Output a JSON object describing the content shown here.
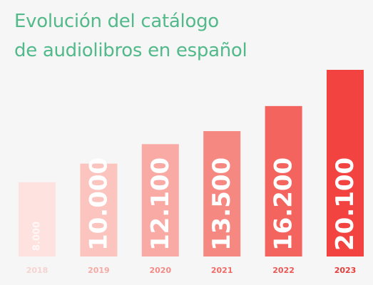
{
  "title_line1": "Evolución del catálogo",
  "title_line2": "de audiolibros en español",
  "chart_data": {
    "type": "bar",
    "title": "Evolución del catálogo de audiolibros en español",
    "categories": [
      "2018",
      "2019",
      "2020",
      "2021",
      "2022",
      "2023"
    ],
    "values": [
      8000,
      10000,
      12100,
      13500,
      16200,
      20100
    ],
    "value_labels": [
      "8.000",
      "10.000",
      "12.100",
      "13.500",
      "16.200",
      "20.100"
    ],
    "xlabel": "",
    "ylabel": "",
    "ylim": [
      0,
      20100
    ],
    "grid": false,
    "legend": "none",
    "colors": [
      "#fde2df",
      "#fbc4bf",
      "#f9aaa4",
      "#f68882",
      "#f4645f",
      "#f24340"
    ],
    "category_label_colors": [
      "#f7d3cf",
      "#f4aaa5",
      "#f18a84",
      "#ee6b65",
      "#eb5752",
      "#e63d39"
    ]
  }
}
